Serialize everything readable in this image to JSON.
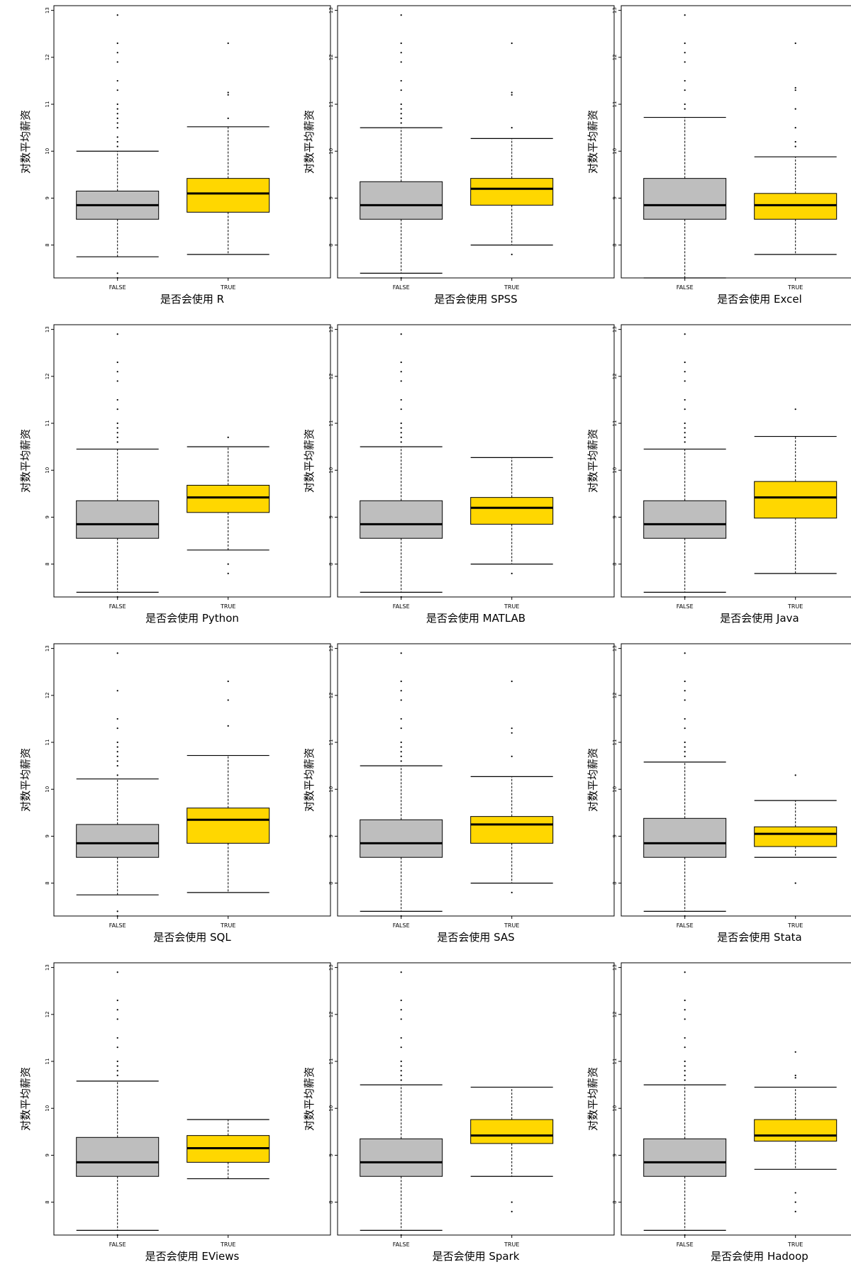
{
  "layout_meta": {
    "ylabel": "对数平均薪资",
    "categories": [
      "FALSE",
      "TRUE"
    ],
    "yticks": [
      8,
      9,
      10,
      11,
      12,
      13
    ]
  },
  "colors": {
    "false_box": "#bebebe",
    "true_box": "#ffd700",
    "stroke": "#000000",
    "background": "#ffffff"
  },
  "chart_data": [
    {
      "type": "boxplot",
      "xlabel": "是否会使用 R",
      "ylabel": "对数平均薪资",
      "ylim": [
        7.3,
        13.1
      ],
      "categories": [
        "FALSE",
        "TRUE"
      ],
      "boxes": [
        {
          "name": "FALSE",
          "whisker_low": 7.75,
          "q1": 8.55,
          "median": 8.85,
          "q3": 9.15,
          "whisker_high": 10.0,
          "outliers": [
            7.3,
            7.4,
            10.1,
            10.2,
            10.3,
            10.5,
            10.6,
            10.7,
            10.8,
            10.9,
            11.0,
            11.3,
            11.5,
            11.9,
            12.1,
            12.3,
            12.9
          ]
        },
        {
          "name": "TRUE",
          "whisker_low": 7.8,
          "q1": 8.7,
          "median": 9.1,
          "q3": 9.42,
          "whisker_high": 10.52,
          "outliers": [
            10.7,
            11.2,
            11.25,
            12.3
          ]
        }
      ]
    },
    {
      "type": "boxplot",
      "xlabel": "是否会使用 SPSS",
      "ylabel": "对数平均薪资",
      "ylim": [
        7.3,
        13.1
      ],
      "categories": [
        "FALSE",
        "TRUE"
      ],
      "boxes": [
        {
          "name": "FALSE",
          "whisker_low": 7.4,
          "q1": 8.55,
          "median": 8.85,
          "q3": 9.35,
          "whisker_high": 10.5,
          "outliers": [
            7.3,
            10.6,
            10.7,
            10.8,
            10.9,
            11.0,
            11.3,
            11.5,
            11.9,
            12.1,
            12.3,
            12.9
          ]
        },
        {
          "name": "TRUE",
          "whisker_low": 8.0,
          "q1": 8.85,
          "median": 9.2,
          "q3": 9.42,
          "whisker_high": 10.27,
          "outliers": [
            7.8,
            10.5,
            11.2,
            11.25,
            12.3
          ]
        }
      ]
    },
    {
      "type": "boxplot",
      "xlabel": "是否会使用 Excel",
      "ylabel": "对数平均薪资",
      "ylim": [
        7.3,
        13.1
      ],
      "categories": [
        "FALSE",
        "TRUE"
      ],
      "boxes": [
        {
          "name": "FALSE",
          "whisker_low": 7.3,
          "q1": 8.55,
          "median": 8.85,
          "q3": 9.42,
          "whisker_high": 10.72,
          "outliers": [
            10.9,
            11.0,
            11.3,
            11.5,
            11.9,
            12.1,
            12.3,
            12.9
          ]
        },
        {
          "name": "TRUE",
          "whisker_low": 7.8,
          "q1": 8.55,
          "median": 8.85,
          "q3": 9.1,
          "whisker_high": 9.88,
          "outliers": [
            10.1,
            10.2,
            10.5,
            10.9,
            11.3,
            11.35,
            12.3
          ]
        }
      ]
    },
    {
      "type": "boxplot",
      "xlabel": "是否会使用 Python",
      "ylabel": "对数平均薪资",
      "ylim": [
        7.3,
        13.1
      ],
      "categories": [
        "FALSE",
        "TRUE"
      ],
      "boxes": [
        {
          "name": "FALSE",
          "whisker_low": 7.4,
          "q1": 8.55,
          "median": 8.85,
          "q3": 9.35,
          "whisker_high": 10.45,
          "outliers": [
            7.3,
            10.6,
            10.7,
            10.8,
            10.9,
            11.0,
            11.3,
            11.5,
            11.9,
            12.1,
            12.3,
            12.9
          ]
        },
        {
          "name": "TRUE",
          "whisker_low": 8.3,
          "q1": 9.1,
          "median": 9.42,
          "q3": 9.68,
          "whisker_high": 10.5,
          "outliers": [
            7.8,
            8.0,
            10.7
          ]
        }
      ]
    },
    {
      "type": "boxplot",
      "xlabel": "是否会使用 MATLAB",
      "ylabel": "对数平均薪资",
      "ylim": [
        7.3,
        13.1
      ],
      "categories": [
        "FALSE",
        "TRUE"
      ],
      "boxes": [
        {
          "name": "FALSE",
          "whisker_low": 7.4,
          "q1": 8.55,
          "median": 8.85,
          "q3": 9.35,
          "whisker_high": 10.5,
          "outliers": [
            7.3,
            10.6,
            10.7,
            10.8,
            10.9,
            11.0,
            11.3,
            11.5,
            11.9,
            12.1,
            12.3,
            12.9
          ]
        },
        {
          "name": "TRUE",
          "whisker_low": 8.0,
          "q1": 8.85,
          "median": 9.2,
          "q3": 9.42,
          "whisker_high": 10.27,
          "outliers": [
            7.8
          ]
        }
      ]
    },
    {
      "type": "boxplot",
      "xlabel": "是否会使用 Java",
      "ylabel": "对数平均薪资",
      "ylim": [
        7.3,
        13.1
      ],
      "categories": [
        "FALSE",
        "TRUE"
      ],
      "boxes": [
        {
          "name": "FALSE",
          "whisker_low": 7.4,
          "q1": 8.55,
          "median": 8.85,
          "q3": 9.35,
          "whisker_high": 10.45,
          "outliers": [
            7.3,
            10.6,
            10.7,
            10.8,
            10.9,
            11.0,
            11.3,
            11.5,
            11.9,
            12.1,
            12.3,
            12.9
          ]
        },
        {
          "name": "TRUE",
          "whisker_low": 7.8,
          "q1": 8.98,
          "median": 9.42,
          "q3": 9.76,
          "whisker_high": 10.72,
          "outliers": [
            11.3
          ]
        }
      ]
    },
    {
      "type": "boxplot",
      "xlabel": "是否会使用 SQL",
      "ylabel": "对数平均薪资",
      "ylim": [
        7.3,
        13.1
      ],
      "categories": [
        "FALSE",
        "TRUE"
      ],
      "boxes": [
        {
          "name": "FALSE",
          "whisker_low": 7.75,
          "q1": 8.55,
          "median": 8.85,
          "q3": 9.25,
          "whisker_high": 10.22,
          "outliers": [
            7.3,
            7.4,
            10.3,
            10.5,
            10.6,
            10.7,
            10.8,
            10.9,
            11.0,
            11.3,
            11.5,
            12.1,
            12.9
          ]
        },
        {
          "name": "TRUE",
          "whisker_low": 7.8,
          "q1": 8.85,
          "median": 9.35,
          "q3": 9.6,
          "whisker_high": 10.72,
          "outliers": [
            11.35,
            11.9,
            12.3
          ]
        }
      ]
    },
    {
      "type": "boxplot",
      "xlabel": "是否会使用 SAS",
      "ylabel": "对数平均薪资",
      "ylim": [
        7.3,
        13.1
      ],
      "categories": [
        "FALSE",
        "TRUE"
      ],
      "boxes": [
        {
          "name": "FALSE",
          "whisker_low": 7.4,
          "q1": 8.55,
          "median": 8.85,
          "q3": 9.35,
          "whisker_high": 10.5,
          "outliers": [
            7.3,
            10.6,
            10.7,
            10.8,
            10.9,
            11.0,
            11.3,
            11.5,
            11.9,
            12.1,
            12.3,
            12.9
          ]
        },
        {
          "name": "TRUE",
          "whisker_low": 8.0,
          "q1": 8.85,
          "median": 9.25,
          "q3": 9.42,
          "whisker_high": 10.27,
          "outliers": [
            7.8,
            10.7,
            11.2,
            11.3,
            12.3
          ]
        }
      ]
    },
    {
      "type": "boxplot",
      "xlabel": "是否会使用 Stata",
      "ylabel": "对数平均薪资",
      "ylim": [
        7.3,
        13.1
      ],
      "categories": [
        "FALSE",
        "TRUE"
      ],
      "boxes": [
        {
          "name": "FALSE",
          "whisker_low": 7.4,
          "q1": 8.55,
          "median": 8.85,
          "q3": 9.38,
          "whisker_high": 10.58,
          "outliers": [
            7.3,
            10.7,
            10.8,
            10.9,
            11.0,
            11.3,
            11.5,
            11.9,
            12.1,
            12.3,
            12.9
          ]
        },
        {
          "name": "TRUE",
          "whisker_low": 8.55,
          "q1": 8.78,
          "median": 9.05,
          "q3": 9.2,
          "whisker_high": 9.76,
          "outliers": [
            8.0,
            10.3
          ]
        }
      ]
    },
    {
      "type": "boxplot",
      "xlabel": "是否会使用 EViews",
      "ylabel": "对数平均薪资",
      "ylim": [
        7.3,
        13.1
      ],
      "categories": [
        "FALSE",
        "TRUE"
      ],
      "boxes": [
        {
          "name": "FALSE",
          "whisker_low": 7.4,
          "q1": 8.55,
          "median": 8.85,
          "q3": 9.38,
          "whisker_high": 10.58,
          "outliers": [
            7.3,
            10.7,
            10.8,
            10.9,
            11.0,
            11.3,
            11.5,
            11.9,
            12.1,
            12.3,
            12.9
          ]
        },
        {
          "name": "TRUE",
          "whisker_low": 8.5,
          "q1": 8.85,
          "median": 9.15,
          "q3": 9.42,
          "whisker_high": 9.76,
          "outliers": []
        }
      ]
    },
    {
      "type": "boxplot",
      "xlabel": "是否会使用 Spark",
      "ylabel": "对数平均薪资",
      "ylim": [
        7.3,
        13.1
      ],
      "categories": [
        "FALSE",
        "TRUE"
      ],
      "boxes": [
        {
          "name": "FALSE",
          "whisker_low": 7.4,
          "q1": 8.55,
          "median": 8.85,
          "q3": 9.35,
          "whisker_high": 10.5,
          "outliers": [
            7.3,
            10.6,
            10.7,
            10.8,
            10.9,
            11.0,
            11.3,
            11.5,
            11.9,
            12.1,
            12.3,
            12.9
          ]
        },
        {
          "name": "TRUE",
          "whisker_low": 8.55,
          "q1": 9.25,
          "median": 9.42,
          "q3": 9.76,
          "whisker_high": 10.45,
          "outliers": [
            7.8,
            8.0
          ]
        }
      ]
    },
    {
      "type": "boxplot",
      "xlabel": "是否会使用 Hadoop",
      "ylabel": "对数平均薪资",
      "ylim": [
        7.3,
        13.1
      ],
      "categories": [
        "FALSE",
        "TRUE"
      ],
      "boxes": [
        {
          "name": "FALSE",
          "whisker_low": 7.4,
          "q1": 8.55,
          "median": 8.85,
          "q3": 9.35,
          "whisker_high": 10.5,
          "outliers": [
            7.3,
            10.6,
            10.7,
            10.8,
            10.9,
            11.0,
            11.3,
            11.5,
            11.9,
            12.1,
            12.3,
            12.9
          ]
        },
        {
          "name": "TRUE",
          "whisker_low": 8.7,
          "q1": 9.3,
          "median": 9.42,
          "q3": 9.76,
          "whisker_high": 10.45,
          "outliers": [
            7.8,
            8.0,
            8.2,
            10.65,
            10.7,
            11.2
          ]
        }
      ]
    }
  ]
}
